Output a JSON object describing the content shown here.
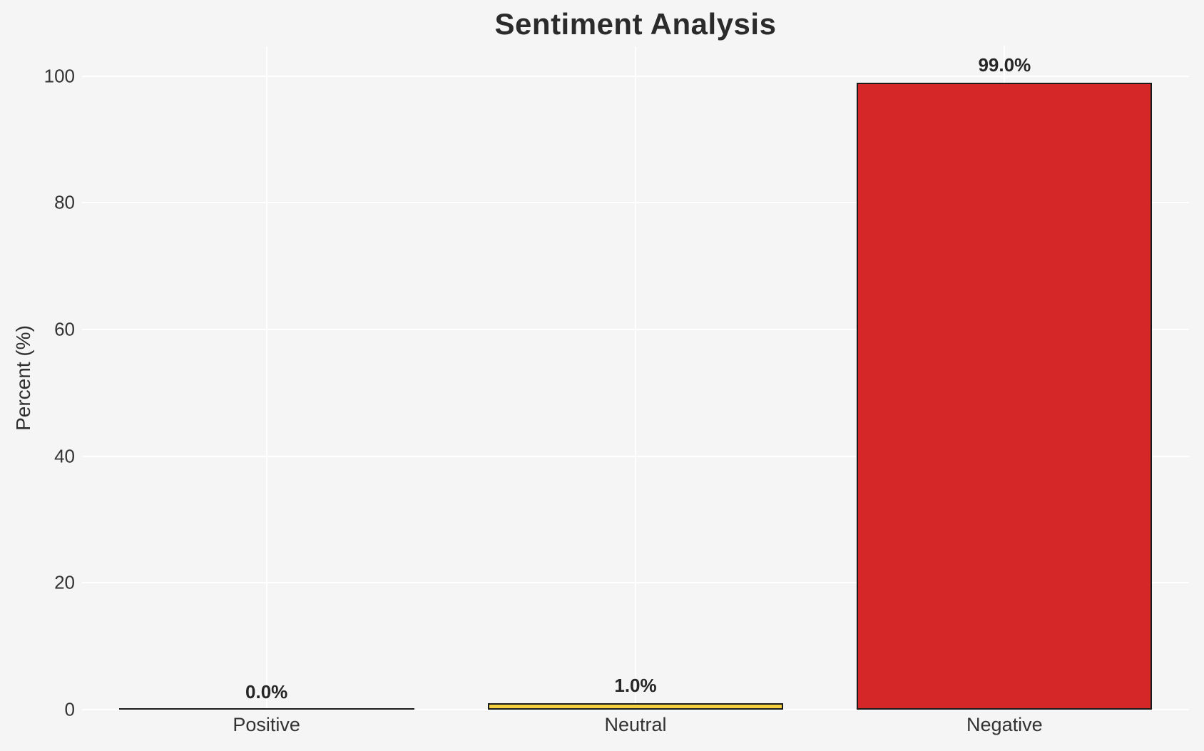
{
  "chart_data": {
    "type": "bar",
    "title": "Sentiment Analysis",
    "ylabel": "Percent (%)",
    "xlabel": "",
    "categories": [
      "Positive",
      "Neutral",
      "Negative"
    ],
    "values": [
      0.0,
      1.0,
      99.0
    ],
    "bar_labels": [
      "0.0%",
      "1.0%",
      "99.0%"
    ],
    "bar_colors": [
      null,
      "#f4d03f",
      "#d62728"
    ],
    "bar_edge_color": "#1a1a1a",
    "yticks": [
      0,
      20,
      40,
      60,
      80,
      100
    ],
    "ylim": [
      0,
      104.7
    ],
    "grid": "horizontal and vertical white gridlines",
    "grid_color": "#ffffff",
    "background_color": "#f5f5f6",
    "legend_position": "none"
  }
}
